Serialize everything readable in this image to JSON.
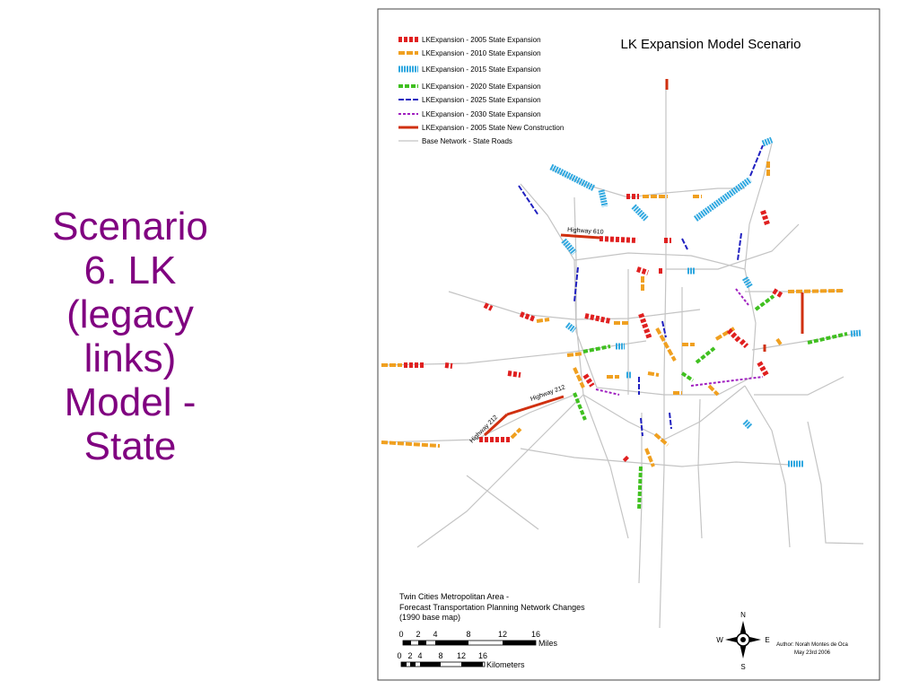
{
  "slide": {
    "title_lines": [
      "Scenario",
      "6. LK",
      "(legacy",
      "links)",
      "Model -",
      "State"
    ]
  },
  "map": {
    "title": "LK Expansion Model Scenario",
    "legend": [
      "LKExpansion - 2005 State Expansion",
      "LKExpansion - 2010 State Expansion",
      "LKExpansion - 2015 State Expansion",
      "LKExpansion - 2020 State Expansion",
      "LKExpansion - 2025 State Expansion",
      "LKExpansion - 2030 State Expansion",
      "LKExpansion - 2005 State New Construction",
      "Base Network - State Roads"
    ],
    "road_labels": [
      "Highway 610",
      "Highway 212",
      "Highway 212"
    ],
    "info": [
      "Twin Cities Metropolitan Area -",
      "Forecast Transportation Planning Network Changes",
      "(1990 base map)"
    ],
    "scale_miles": {
      "ticks": [
        0,
        2,
        4,
        8,
        12,
        16
      ],
      "unit": "Miles"
    },
    "scale_km": {
      "ticks": [
        0,
        2,
        4,
        8,
        12,
        16
      ],
      "unit": "Kilometers"
    },
    "compass": {
      "n": "N",
      "s": "S",
      "e": "E",
      "w": "W"
    },
    "author": [
      "Author: Norah Montes de Oca",
      "May 23rd 2006"
    ]
  }
}
